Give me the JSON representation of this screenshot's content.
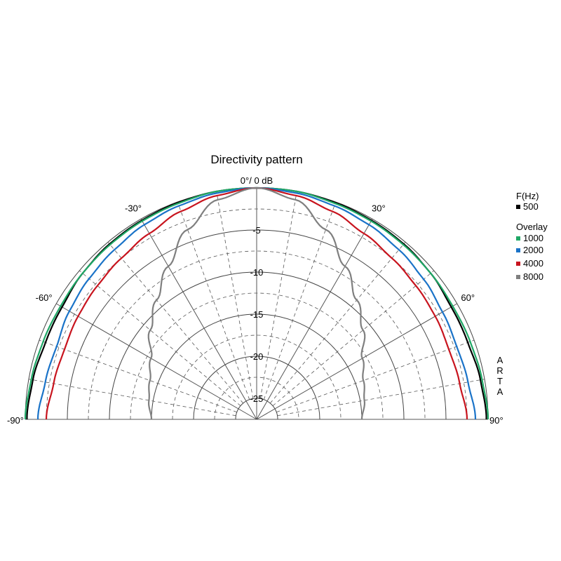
{
  "chart_data": {
    "type": "polar",
    "title": "Directivity pattern",
    "top_label": "0°/ 0 dB",
    "watermark": "ARTA",
    "angle_range": [
      -90,
      90
    ],
    "angle_labels": [
      {
        "angle": -90,
        "text": "-90°"
      },
      {
        "angle": -60,
        "text": "-60°"
      },
      {
        "angle": -30,
        "text": "-30°"
      },
      {
        "angle": 30,
        "text": "30°"
      },
      {
        "angle": 60,
        "text": "60°"
      },
      {
        "angle": 90,
        "text": "90°"
      }
    ],
    "r_range_db": [
      -27.5,
      0
    ],
    "r_ticks": [
      {
        "value": -5,
        "text": "-5"
      },
      {
        "value": -10,
        "text": "-10"
      },
      {
        "value": -15,
        "text": "-15"
      },
      {
        "value": -20,
        "text": "-20"
      },
      {
        "value": -25,
        "text": "-25"
      }
    ],
    "legend": {
      "header": "F(Hz)",
      "overlay_label": "Overlay"
    },
    "series": [
      {
        "name": "500",
        "color": "#000000",
        "angles": [
          -90,
          -80,
          -70,
          -60,
          -50,
          -40,
          -30,
          -20,
          -10,
          0,
          10,
          20,
          30,
          40,
          50,
          60,
          70,
          80,
          90
        ],
        "values": [
          -0.2,
          -0.5,
          -0.8,
          -0.8,
          -0.5,
          -0.3,
          -0.2,
          -0.1,
          0,
          0,
          0,
          -0.1,
          -0.2,
          -0.3,
          -0.5,
          -0.8,
          -0.8,
          -0.5,
          -0.2
        ]
      },
      {
        "name": "1000",
        "color": "#1fa866",
        "angles": [
          -90,
          -80,
          -70,
          -60,
          -50,
          -40,
          -30,
          -20,
          -10,
          0,
          10,
          20,
          30,
          40,
          50,
          60,
          70,
          80,
          90
        ],
        "values": [
          0,
          -0.3,
          -0.5,
          -0.6,
          -0.5,
          -0.4,
          -0.3,
          -0.2,
          0,
          0,
          0,
          -0.2,
          -0.3,
          -0.4,
          -0.5,
          -0.6,
          -0.5,
          -0.3,
          0
        ]
      },
      {
        "name": "2000",
        "color": "#1a73c8",
        "angles": [
          -90,
          -80,
          -70,
          -60,
          -50,
          -40,
          -30,
          -20,
          -10,
          0,
          10,
          20,
          30,
          40,
          50,
          60,
          70,
          80,
          90
        ],
        "values": [
          -1.5,
          -2,
          -2.2,
          -1.8,
          -1.5,
          -1.2,
          -0.8,
          -0.5,
          -0.2,
          0,
          -0.2,
          -0.5,
          -0.8,
          -1.2,
          -1.6,
          -2,
          -2.2,
          -2,
          -1.5
        ]
      },
      {
        "name": "4000",
        "color": "#c8141e",
        "angles": [
          -90,
          -80,
          -70,
          -60,
          -50,
          -40,
          -30,
          -20,
          -10,
          0,
          10,
          20,
          30,
          40,
          50,
          60,
          70,
          80,
          90
        ],
        "values": [
          -2.5,
          -3,
          -3.2,
          -3,
          -2.8,
          -2.5,
          -2,
          -1.2,
          -0.5,
          0,
          -0.5,
          -1.2,
          -2,
          -2.5,
          -2.8,
          -3,
          -3.2,
          -3,
          -2.5
        ]
      },
      {
        "name": "8000",
        "color": "#7f7f7f",
        "angles": [
          -90,
          -80,
          -70,
          -60,
          -50,
          -40,
          -30,
          -20,
          -10,
          0,
          10,
          20,
          30,
          40,
          50,
          60,
          70,
          80,
          90
        ],
        "values": [
          -15,
          -14.5,
          -14,
          -13,
          -11,
          -9,
          -6.5,
          -3.5,
          -1,
          0,
          -1,
          -3.5,
          -6.5,
          -9,
          -11,
          -13,
          -14,
          -14.5,
          -15
        ]
      }
    ]
  }
}
